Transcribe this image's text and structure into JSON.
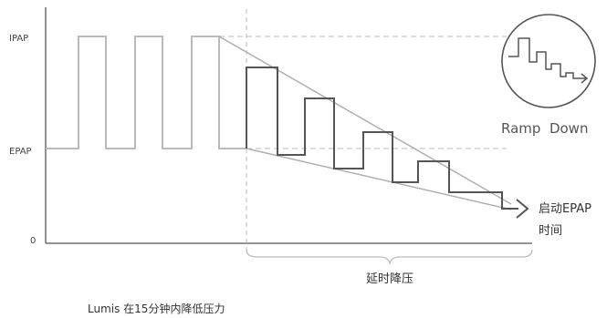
{
  "axis": {
    "ipap_label": "IPAP",
    "epap_label": "EPAP",
    "zero_label": "0"
  },
  "annotations": {
    "start_label_line1": "启动EPAP",
    "start_label_line2": "时间",
    "delay_label": "延时降压",
    "badge_label": "Ramp  Down"
  },
  "caption": "Lumis 在15分钟内降低压力",
  "colors": {
    "pressure_trace": "#bbbbbb",
    "ramp_trace": "#555555",
    "envelope": "#b0b0b0",
    "axis": "#555555",
    "dashed_guide": "#bbbbbb"
  }
}
